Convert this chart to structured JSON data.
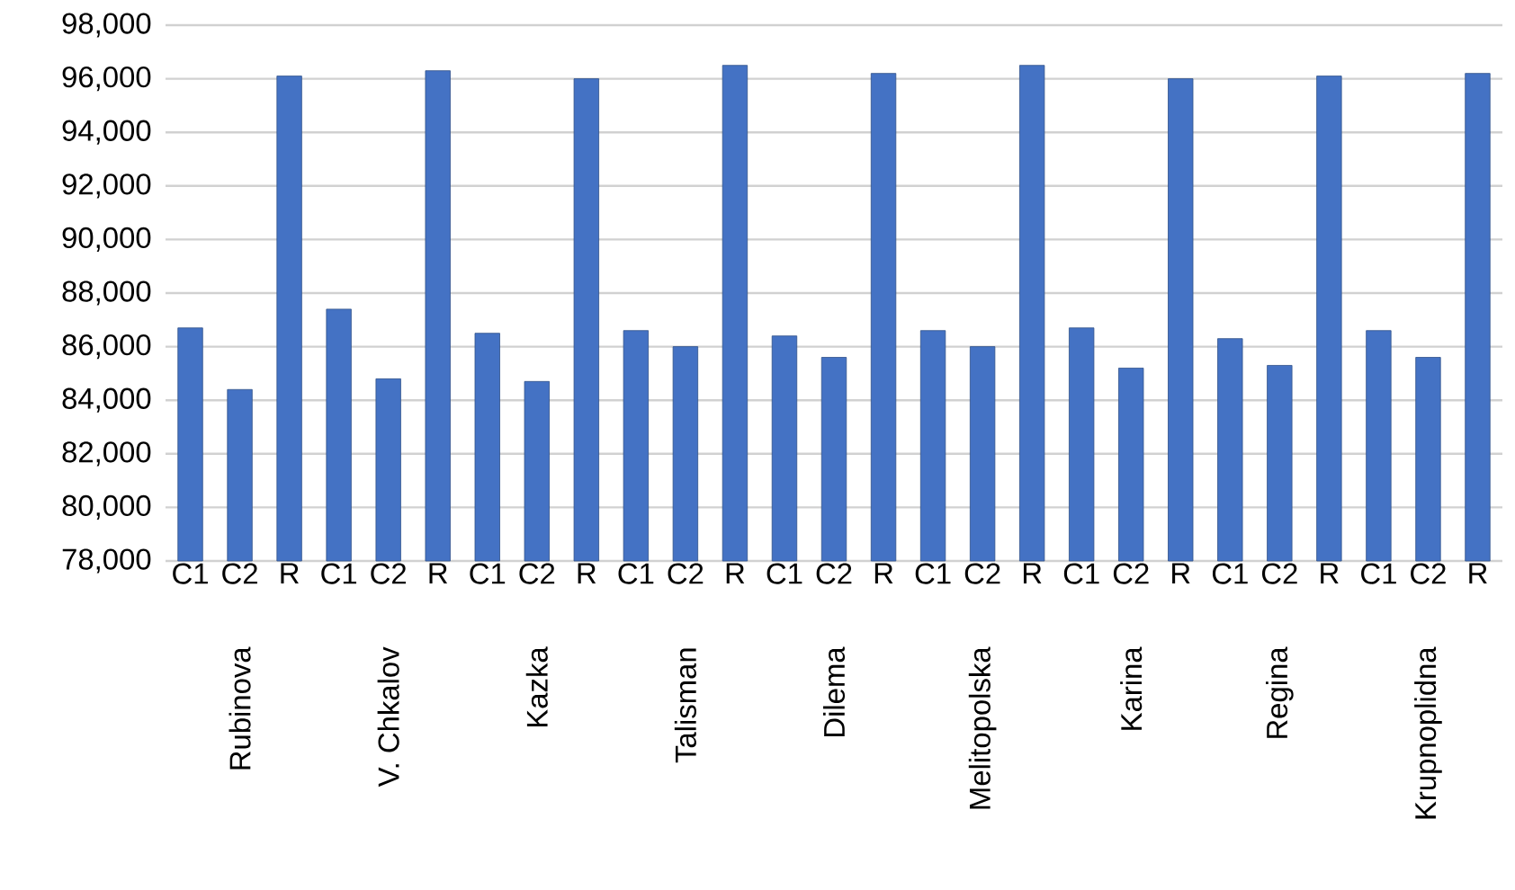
{
  "chart_data": {
    "type": "bar",
    "categories": [
      "Rubinova",
      "V. Chkalov",
      "Kazka",
      "Talisman",
      "Dilema",
      "Melitopolska",
      "Karina",
      "Regina",
      "Krupnoplidna"
    ],
    "series": [
      {
        "name": "C1",
        "color": "#4472c4",
        "values": [
          86700,
          87400,
          86500,
          86600,
          86400,
          86600,
          86700,
          86300,
          86600
        ]
      },
      {
        "name": "C2",
        "color": "#4472c4",
        "values": [
          84400,
          84800,
          84700,
          86000,
          85600,
          86000,
          85200,
          85300,
          85600
        ]
      },
      {
        "name": "R",
        "color": "#4472c4",
        "values": [
          96100,
          96300,
          96000,
          96500,
          96200,
          96500,
          96000,
          96100,
          96200
        ]
      }
    ],
    "ylim": [
      78000,
      98000
    ],
    "yticks": [
      {
        "value": 78000,
        "label": "78,000"
      },
      {
        "value": 80000,
        "label": "80,000"
      },
      {
        "value": 82000,
        "label": "82,000"
      },
      {
        "value": 84000,
        "label": "84,000"
      },
      {
        "value": 86000,
        "label": "86,000"
      },
      {
        "value": 88000,
        "label": "88,000"
      },
      {
        "value": 90000,
        "label": "90,000"
      },
      {
        "value": 92000,
        "label": "92,000"
      },
      {
        "value": 94000,
        "label": "94,000"
      },
      {
        "value": 96000,
        "label": "96,000"
      },
      {
        "value": 98000,
        "label": "98,000"
      }
    ],
    "grid": "y"
  }
}
